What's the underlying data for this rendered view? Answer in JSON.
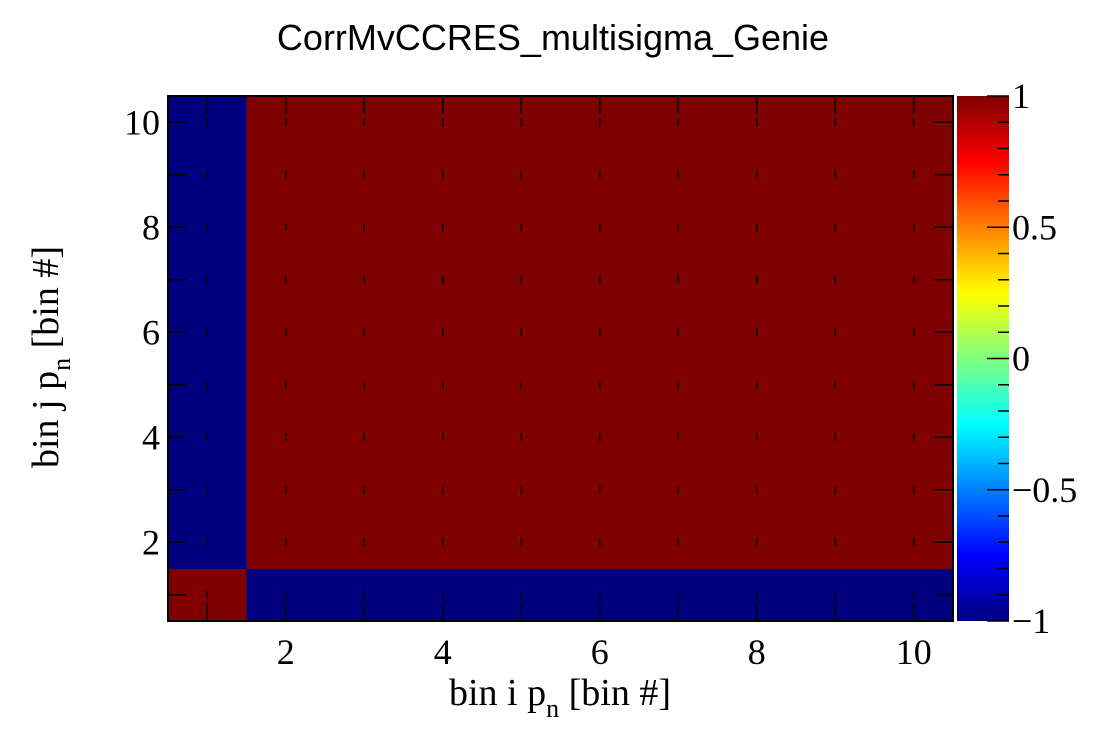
{
  "chart_data": {
    "type": "heatmap",
    "title": "CorrMvCCRES_multisigma_Genie",
    "xlabel": {
      "main": "bin i p",
      "sub": "n",
      "tail": " [bin #]"
    },
    "ylabel": {
      "main": "bin j p",
      "sub": "n",
      "tail": " [bin #]"
    },
    "x_bins": [
      1,
      2,
      3,
      4,
      5,
      6,
      7,
      8,
      9,
      10
    ],
    "y_bins": [
      1,
      2,
      3,
      4,
      5,
      6,
      7,
      8,
      9,
      10
    ],
    "xlim": [
      0.5,
      10.5
    ],
    "ylim": [
      0.5,
      10.5
    ],
    "x_ticks": [
      "2",
      "4",
      "6",
      "8",
      "10"
    ],
    "y_ticks": [
      "2",
      "4",
      "6",
      "8",
      "10"
    ],
    "values": [
      [
        1,
        -1,
        -1,
        -1,
        -1,
        -1,
        -1,
        -1,
        -1,
        -1
      ],
      [
        -1,
        1,
        1,
        1,
        1,
        1,
        1,
        1,
        1,
        1
      ],
      [
        -1,
        1,
        1,
        1,
        1,
        1,
        1,
        1,
        1,
        1
      ],
      [
        -1,
        1,
        1,
        1,
        1,
        1,
        1,
        1,
        1,
        1
      ],
      [
        -1,
        1,
        1,
        1,
        1,
        1,
        1,
        1,
        1,
        1
      ],
      [
        -1,
        1,
        1,
        1,
        1,
        1,
        1,
        1,
        1,
        1
      ],
      [
        -1,
        1,
        1,
        1,
        1,
        1,
        1,
        1,
        1,
        1
      ],
      [
        -1,
        1,
        1,
        1,
        1,
        1,
        1,
        1,
        1,
        1
      ],
      [
        -1,
        1,
        1,
        1,
        1,
        1,
        1,
        1,
        1,
        1
      ],
      [
        -1,
        1,
        1,
        1,
        1,
        1,
        1,
        1,
        1,
        1
      ]
    ],
    "zlim": [
      -1,
      1
    ],
    "colorbar_ticks": [
      "1",
      "0.5",
      "0",
      "−0.5",
      "−1"
    ],
    "colorbar_tick_values": [
      1,
      0.5,
      0,
      -0.5,
      -1
    ],
    "colormap": [
      "#00007f",
      "#0000ff",
      "#00ffff",
      "#ffff00",
      "#ff0000",
      "#7f0000"
    ],
    "grid": false,
    "legend": "colorbar-right"
  }
}
